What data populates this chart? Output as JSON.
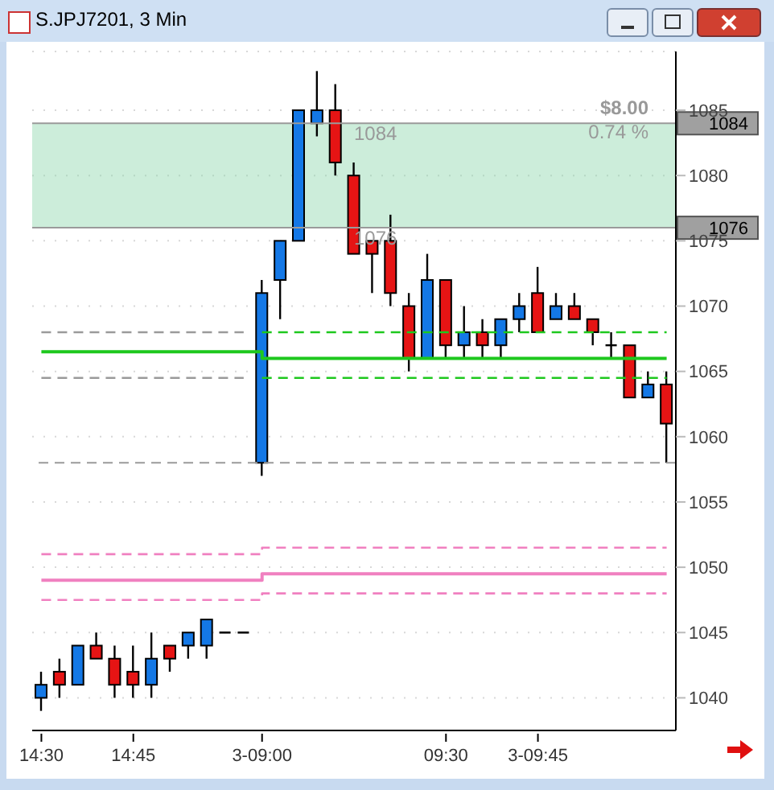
{
  "chart_data": {
    "type": "candlestick",
    "title": "S.JPJ7201, 3 Min",
    "categories": [
      "14:30",
      null,
      null,
      null,
      null,
      "14:45",
      null,
      null,
      null,
      null,
      null,
      null,
      "3-09:00",
      null,
      null,
      null,
      null,
      null,
      null,
      null,
      null,
      null,
      "09:30",
      null,
      null,
      null,
      null,
      "3-09:45",
      null,
      null,
      null,
      null,
      null,
      null,
      null
    ],
    "ohlc": [
      [
        1040,
        1042,
        1039,
        1041
      ],
      [
        1042,
        1043,
        1040,
        1041
      ],
      [
        1041,
        1044,
        1041,
        1044
      ],
      [
        1044,
        1045,
        1043,
        1043
      ],
      [
        1043,
        1044,
        1040,
        1041
      ],
      [
        1042,
        1044,
        1040,
        1041
      ],
      [
        1041,
        1045,
        1040,
        1043
      ],
      [
        1044,
        1044,
        1042,
        1043
      ],
      [
        1044,
        1045,
        1043,
        1045
      ],
      [
        1044,
        1046,
        1043,
        1046
      ],
      [
        1045,
        1045,
        1045,
        1045
      ],
      [
        1045,
        1045,
        1045,
        1045
      ],
      [
        1058,
        1072,
        1057,
        1071
      ],
      [
        1072,
        1075,
        1069,
        1075
      ],
      [
        1075,
        1085,
        1075,
        1085
      ],
      [
        1084,
        1088,
        1083,
        1085
      ],
      [
        1085,
        1087,
        1080,
        1081
      ],
      [
        1080,
        1081,
        1074,
        1074
      ],
      [
        1075,
        1075,
        1071,
        1074
      ],
      [
        1075,
        1077,
        1070,
        1071
      ],
      [
        1070,
        1071,
        1065,
        1066
      ],
      [
        1066,
        1074,
        1066,
        1072
      ],
      [
        1072,
        1072,
        1066,
        1067
      ],
      [
        1067,
        1070,
        1066,
        1068
      ],
      [
        1068,
        1069,
        1066,
        1067
      ],
      [
        1067,
        1069,
        1066,
        1069
      ],
      [
        1069,
        1071,
        1068,
        1070
      ],
      [
        1071,
        1073,
        1068,
        1068
      ],
      [
        1069,
        1071,
        1069,
        1070
      ],
      [
        1070,
        1071,
        1069,
        1069
      ],
      [
        1069,
        1069,
        1067,
        1068
      ],
      [
        1067,
        1068,
        1066,
        1067
      ],
      [
        1067,
        1067,
        1063,
        1063
      ],
      [
        1063,
        1065,
        1063,
        1064
      ],
      [
        1064,
        1065,
        1058,
        1061
      ]
    ],
    "colors": [
      "#1478e6",
      "#e61414",
      "#1478e6",
      "#e61414",
      "#e61414",
      "#e61414",
      "#1478e6",
      "#e61414",
      "#1478e6",
      "#1478e6",
      "#000000",
      "#000000",
      "#1478e6",
      "#1478e6",
      "#1478e6",
      "#1478e6",
      "#e61414",
      "#e61414",
      "#e61414",
      "#e61414",
      "#e61414",
      "#1478e6",
      "#e61414",
      "#1478e6",
      "#e61414",
      "#1478e6",
      "#1478e6",
      "#e61414",
      "#1478e6",
      "#e61414",
      "#e61414",
      "#000000",
      "#e61414",
      "#1478e6",
      "#e61414"
    ],
    "series": [
      {
        "type": "step",
        "color": "#1ec81e",
        "line_style": "solid",
        "values": [
          1066.5,
          1066.5,
          1066.5,
          1066.5,
          1066.5,
          1066.5,
          1066.5,
          1066.5,
          1066.5,
          1066.5,
          1066.5,
          1066.5,
          1066,
          1066,
          1066,
          1066,
          1066,
          1066,
          1066,
          1066,
          1066,
          1066,
          1066,
          1066,
          1066,
          1066,
          1066,
          1066,
          1066,
          1066,
          1066,
          1066,
          1066,
          1066,
          1066
        ]
      },
      {
        "type": "step",
        "color": "#1ec81e",
        "line_style": "dashed",
        "values": [
          null,
          null,
          null,
          null,
          null,
          null,
          null,
          null,
          null,
          null,
          null,
          null,
          1068,
          1068,
          1068,
          1068,
          1068,
          1068,
          1068,
          1068,
          1068,
          1068,
          1068,
          1068,
          1068,
          1068,
          1068,
          1068,
          1068,
          1068,
          1068,
          1068,
          1068,
          1068,
          1068
        ]
      },
      {
        "type": "step",
        "color": "#1ec81e",
        "line_style": "dashed",
        "values": [
          null,
          null,
          null,
          null,
          null,
          null,
          null,
          null,
          null,
          null,
          null,
          null,
          1064.5,
          1064.5,
          1064.5,
          1064.5,
          1064.5,
          1064.5,
          1064.5,
          1064.5,
          1064.5,
          1064.5,
          1064.5,
          1064.5,
          1064.5,
          1064.5,
          1064.5,
          1064.5,
          1064.5,
          1064.5,
          1064.5,
          1064.5,
          1064.5,
          1064.5,
          1064.5
        ]
      },
      {
        "type": "step",
        "color": "#9a9a9a",
        "line_style": "dashed",
        "values": [
          1068,
          1068,
          1068,
          1068,
          1068,
          1068,
          1068,
          1068,
          1068,
          1068,
          1068,
          1068,
          null,
          null,
          null,
          null,
          null,
          null,
          null,
          null,
          null,
          null,
          null,
          null,
          null,
          null,
          null,
          null,
          null,
          null,
          null,
          null,
          null,
          null,
          null
        ]
      },
      {
        "type": "step",
        "color": "#9a9a9a",
        "line_style": "dashed",
        "values": [
          1064.5,
          1064.5,
          1064.5,
          1064.5,
          1064.5,
          1064.5,
          1064.5,
          1064.5,
          1064.5,
          1064.5,
          1064.5,
          1064.5,
          null,
          null,
          null,
          null,
          null,
          null,
          null,
          null,
          null,
          null,
          null,
          null,
          null,
          null,
          null,
          null,
          null,
          null,
          null,
          null,
          null,
          null,
          null
        ]
      },
      {
        "type": "step",
        "color": "#f080c0",
        "line_style": "solid",
        "values": [
          1049,
          1049,
          1049,
          1049,
          1049,
          1049,
          1049,
          1049,
          1049,
          1049,
          1049,
          1049,
          1049.5,
          1049.5,
          1049.5,
          1049.5,
          1049.5,
          1049.5,
          1049.5,
          1049.5,
          1049.5,
          1049.5,
          1049.5,
          1049.5,
          1049.5,
          1049.5,
          1049.5,
          1049.5,
          1049.5,
          1049.5,
          1049.5,
          1049.5,
          1049.5,
          1049.5,
          1049.5
        ]
      },
      {
        "type": "step",
        "color": "#f080c0",
        "line_style": "dashed",
        "values": [
          1051,
          1051,
          1051,
          1051,
          1051,
          1051,
          1051,
          1051,
          1051,
          1051,
          1051,
          1051,
          1051.5,
          1051.5,
          1051.5,
          1051.5,
          1051.5,
          1051.5,
          1051.5,
          1051.5,
          1051.5,
          1051.5,
          1051.5,
          1051.5,
          1051.5,
          1051.5,
          1051.5,
          1051.5,
          1051.5,
          1051.5,
          1051.5,
          1051.5,
          1051.5,
          1051.5,
          1051.5
        ]
      },
      {
        "type": "step",
        "color": "#f080c0",
        "line_style": "dashed",
        "values": [
          1047.5,
          1047.5,
          1047.5,
          1047.5,
          1047.5,
          1047.5,
          1047.5,
          1047.5,
          1047.5,
          1047.5,
          1047.5,
          1047.5,
          1048,
          1048,
          1048,
          1048,
          1048,
          1048,
          1048,
          1048,
          1048,
          1048,
          1048,
          1048,
          1048,
          1048,
          1048,
          1048,
          1048,
          1048,
          1048,
          1048,
          1048,
          1048,
          1048
        ]
      }
    ],
    "ref_lines": [
      {
        "axis": "y",
        "value": 1084,
        "label": "1084",
        "color": "#9a9a9a",
        "line_style": "solid"
      },
      {
        "axis": "y",
        "value": 1076,
        "label": "1076",
        "color": "#9a9a9a",
        "line_style": "solid"
      },
      {
        "axis": "y",
        "value": 1058,
        "color": "#9a9a9a",
        "line_style": "dashed"
      }
    ],
    "bands": [
      {
        "axis": "y",
        "from": 1076,
        "to": 1084,
        "color": "#8fd6ad"
      }
    ],
    "annotations": [
      "$8.00",
      "0.74 %",
      {
        "text": "1084",
        "y": 1084
      },
      {
        "text": "1076",
        "y": 1076
      }
    ],
    "ylim": [
      1037.5,
      1089.5
    ],
    "yticks": [
      1040,
      1045,
      1050,
      1055,
      1060,
      1065,
      1070,
      1075,
      1080,
      1085
    ],
    "grid": "y",
    "legend": false
  }
}
